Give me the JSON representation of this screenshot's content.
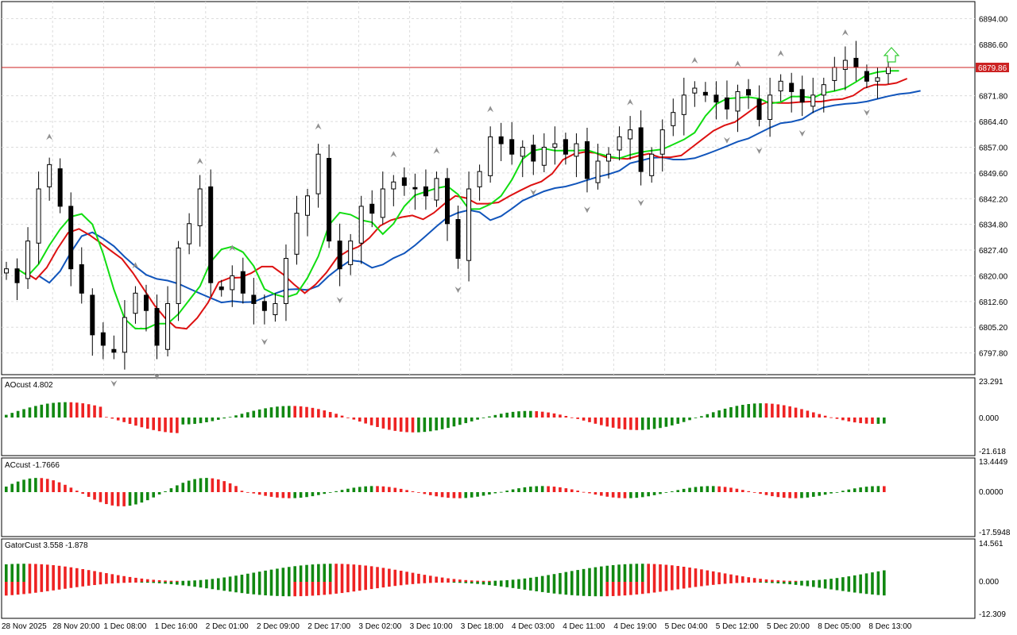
{
  "colors": {
    "bull_hist": "#118811",
    "bear_hist": "#ee2222",
    "ma_fast": "#11dd11",
    "ma_mid": "#dd1111",
    "ma_slow": "#1155bb",
    "price_line": "#cc2222",
    "grid": "#dcdcdc",
    "fractal": "#909090"
  },
  "main": {
    "price_ticks": [
      "6894.00",
      "6886.60",
      "6871.80",
      "6864.40",
      "6857.00",
      "6849.60",
      "6842.20",
      "6834.80",
      "6827.40",
      "6820.00",
      "6812.60",
      "6805.20",
      "6797.80"
    ],
    "current_price": "6879.86",
    "arrow_icon": "green-up-arrow"
  },
  "ao": {
    "title": "AOcust 4.802",
    "ticks": [
      "23.291",
      "0.000",
      "-21.618"
    ]
  },
  "ac": {
    "title": "ACcust -1.7666",
    "ticks": [
      "13.4449",
      "0.0000",
      "-17.5948"
    ]
  },
  "gator": {
    "title": "GatorCust 3.558 -1.878",
    "ticks": [
      "14.561",
      "0.000",
      "-12.309"
    ]
  },
  "time_labels": [
    "28 Nov 2025",
    "28 Nov 20:00",
    "1 Dec 08:00",
    "1 Dec 16:00",
    "2 Dec 01:00",
    "2 Dec 09:00",
    "2 Dec 17:00",
    "3 Dec 02:00",
    "3 Dec 10:00",
    "3 Dec 18:00",
    "4 Dec 03:00",
    "4 Dec 11:00",
    "4 Dec 19:00",
    "5 Dec 04:00",
    "5 Dec 12:00",
    "5 Dec 20:00",
    "8 Dec 05:00",
    "8 Dec 13:00"
  ],
  "chart_data": {
    "type": "candlestick",
    "ylim": [
      6792,
      6898
    ],
    "close_path": [
      6822,
      6818,
      6830,
      6845,
      6852,
      6840,
      6822,
      6815,
      6803,
      6800,
      6798,
      6808,
      6815,
      6810,
      6800,
      6812,
      6828,
      6835,
      6845,
      6818,
      6816,
      6820,
      6815,
      6812,
      6810,
      6812,
      6825,
      6838,
      6843,
      6855,
      6830,
      6822,
      6830,
      6840,
      6838,
      6845,
      6847,
      6846,
      6845,
      6843,
      6848,
      6835,
      6825,
      6845,
      6850,
      6860,
      6858,
      6855,
      6857,
      6853,
      6857,
      6858,
      6855,
      6858,
      6848,
      6853,
      6855,
      6860,
      6862,
      6850,
      6855,
      6862,
      6867,
      6872,
      6874,
      6872,
      6870,
      6868,
      6873,
      6872,
      6865,
      6872,
      6876,
      6873,
      6870,
      6872,
      6875,
      6880,
      6882,
      6880,
      6876,
      6877,
      6880
    ]
  }
}
